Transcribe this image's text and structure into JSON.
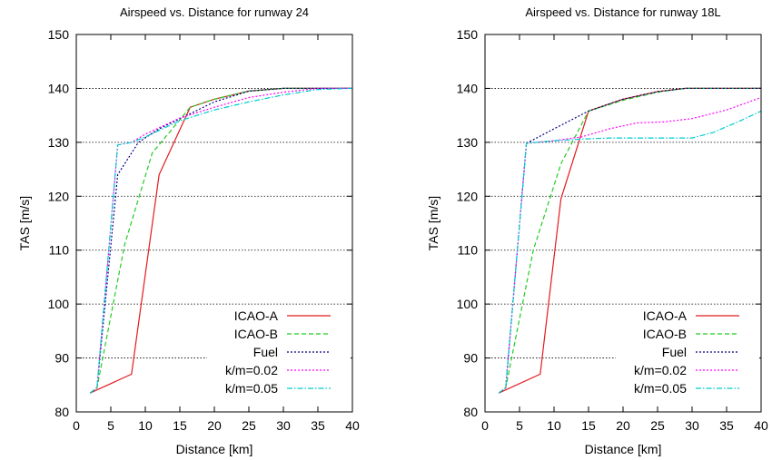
{
  "chart_data": [
    {
      "type": "line",
      "title": "Airspeed vs. Distance for runway 24",
      "xlabel": "Distance [km]",
      "ylabel": "TAS [m/s]",
      "xlim": [
        0,
        40
      ],
      "ylim": [
        80,
        150
      ],
      "xticks": [
        "0",
        "5",
        "10",
        "15",
        "20",
        "25",
        "30",
        "35",
        "40"
      ],
      "yticks": [
        "80",
        "90",
        "100",
        "110",
        "120",
        "130",
        "140",
        "150"
      ],
      "grid": "horizontal",
      "legend_position": "bottom-right",
      "series": [
        {
          "name": "ICAO-A",
          "color": "#e41a1c",
          "dash": "solid",
          "points": [
            [
              2,
              83.5
            ],
            [
              8,
              87
            ],
            [
              12,
              124
            ],
            [
              16.5,
              136.5
            ],
            [
              20,
              138
            ],
            [
              25,
              139.5
            ],
            [
              30,
              140
            ],
            [
              35,
              140
            ],
            [
              40,
              140
            ]
          ]
        },
        {
          "name": "ICAO-B",
          "color": "#22cc22",
          "dash": "dashed",
          "points": [
            [
              2,
              83.5
            ],
            [
              3,
              84.5
            ],
            [
              7,
              111
            ],
            [
              11,
              128
            ],
            [
              16.5,
              136.5
            ],
            [
              20,
              138
            ],
            [
              25,
              139.5
            ],
            [
              30,
              140
            ],
            [
              40,
              140
            ]
          ]
        },
        {
          "name": "Fuel",
          "color": "#000080",
          "dash": "dotted",
          "points": [
            [
              2,
              83.5
            ],
            [
              3,
              84.5
            ],
            [
              6,
              124
            ],
            [
              9,
              130
            ],
            [
              12,
              132.5
            ],
            [
              16,
              135
            ],
            [
              20,
              137.5
            ],
            [
              25,
              139.5
            ],
            [
              30,
              140
            ],
            [
              40,
              140
            ]
          ]
        },
        {
          "name": "k/m=0.02",
          "color": "#ff00ff",
          "dash": "dotted",
          "points": [
            [
              2,
              83.5
            ],
            [
              3,
              84.5
            ],
            [
              6,
              129.5
            ],
            [
              8,
              130
            ],
            [
              10,
              131.5
            ],
            [
              15,
              134.5
            ],
            [
              20,
              136.5
            ],
            [
              25,
              138.3
            ],
            [
              30,
              139.3
            ],
            [
              35,
              140
            ],
            [
              40,
              140
            ]
          ]
        },
        {
          "name": "k/m=0.05",
          "color": "#00cccc",
          "dash": "dashdot",
          "points": [
            [
              2,
              83.5
            ],
            [
              3,
              84.5
            ],
            [
              6,
              129.5
            ],
            [
              8,
              130
            ],
            [
              10,
              131
            ],
            [
              15,
              134
            ],
            [
              20,
              136
            ],
            [
              25,
              137.5
            ],
            [
              30,
              138.8
            ],
            [
              35,
              139.8
            ],
            [
              40,
              140
            ]
          ]
        }
      ]
    },
    {
      "type": "line",
      "title": "Airspeed vs. Distance for runway 18L",
      "xlabel": "Distance [km]",
      "ylabel": "TAS [m/s]",
      "xlim": [
        0,
        40
      ],
      "ylim": [
        80,
        150
      ],
      "xticks": [
        "0",
        "5",
        "10",
        "15",
        "20",
        "25",
        "30",
        "35",
        "40"
      ],
      "yticks": [
        "80",
        "90",
        "100",
        "110",
        "120",
        "130",
        "140",
        "150"
      ],
      "grid": "horizontal",
      "legend_position": "bottom-right",
      "series": [
        {
          "name": "ICAO-A",
          "color": "#e41a1c",
          "dash": "solid",
          "points": [
            [
              2,
              83.5
            ],
            [
              8,
              87
            ],
            [
              11,
              119.5
            ],
            [
              15,
              135.8
            ],
            [
              20,
              138
            ],
            [
              25,
              139.4
            ],
            [
              29,
              140
            ],
            [
              35,
              140
            ],
            [
              40,
              140
            ]
          ]
        },
        {
          "name": "ICAO-B",
          "color": "#22cc22",
          "dash": "dashed",
          "points": [
            [
              2,
              83.5
            ],
            [
              3,
              84.5
            ],
            [
              7,
              110
            ],
            [
              11,
              126
            ],
            [
              15,
              135.8
            ],
            [
              20,
              137.8
            ],
            [
              25,
              139.3
            ],
            [
              29,
              140
            ],
            [
              40,
              140
            ]
          ]
        },
        {
          "name": "Fuel",
          "color": "#000080",
          "dash": "dotted",
          "points": [
            [
              2,
              83.5
            ],
            [
              3,
              84.5
            ],
            [
              6,
              129.8
            ],
            [
              10,
              132.5
            ],
            [
              15,
              135.8
            ],
            [
              20,
              138
            ],
            [
              25,
              139.4
            ],
            [
              29,
              140
            ],
            [
              40,
              140
            ]
          ]
        },
        {
          "name": "k/m=0.02",
          "color": "#ff00ff",
          "dash": "dotted",
          "points": [
            [
              2,
              83.5
            ],
            [
              3,
              84.5
            ],
            [
              6,
              129.8
            ],
            [
              10,
              130.3
            ],
            [
              14,
              131
            ],
            [
              18,
              132.5
            ],
            [
              22,
              133.6
            ],
            [
              26,
              133.8
            ],
            [
              30,
              134.4
            ],
            [
              35,
              136
            ],
            [
              40,
              138.3
            ]
          ]
        },
        {
          "name": "k/m=0.05",
          "color": "#00cccc",
          "dash": "dashdot",
          "points": [
            [
              2,
              83.5
            ],
            [
              3,
              84.5
            ],
            [
              6,
              129.8
            ],
            [
              10,
              130.3
            ],
            [
              14,
              130.6
            ],
            [
              18,
              130.8
            ],
            [
              25,
              130.8
            ],
            [
              30,
              130.8
            ],
            [
              33,
              131.8
            ],
            [
              37,
              134
            ],
            [
              40,
              135.8
            ]
          ]
        }
      ]
    }
  ]
}
